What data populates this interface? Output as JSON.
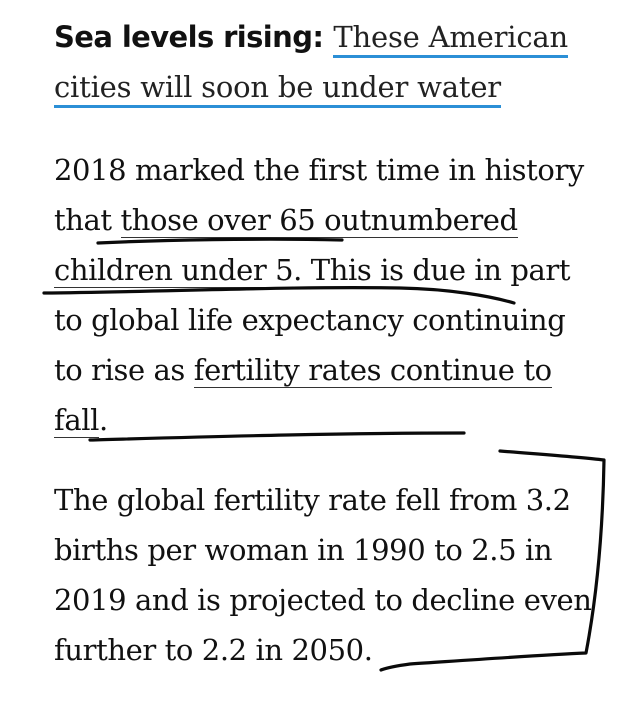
{
  "related": {
    "label": "Sea levels rising:",
    "link_text": "These American cities will soon be under water",
    "link_color": "#2b8fd6"
  },
  "paragraph1": {
    "part1": "2018 marked the first time in history that ",
    "link1": "those over 65 outnumbered children under 5",
    "part2": ". This is due in part to global life expectancy continuing to rise as ",
    "link2": "fertility rates continue to fall",
    "part3": "."
  },
  "paragraph2": {
    "text": "The global fertility rate fell from 3.2 births per woman in 1990 to 2.5 in 2019 and is projected to decline even further to 2.2 in 2050."
  },
  "annotations": {
    "ink_color": "#0a0a0a"
  }
}
